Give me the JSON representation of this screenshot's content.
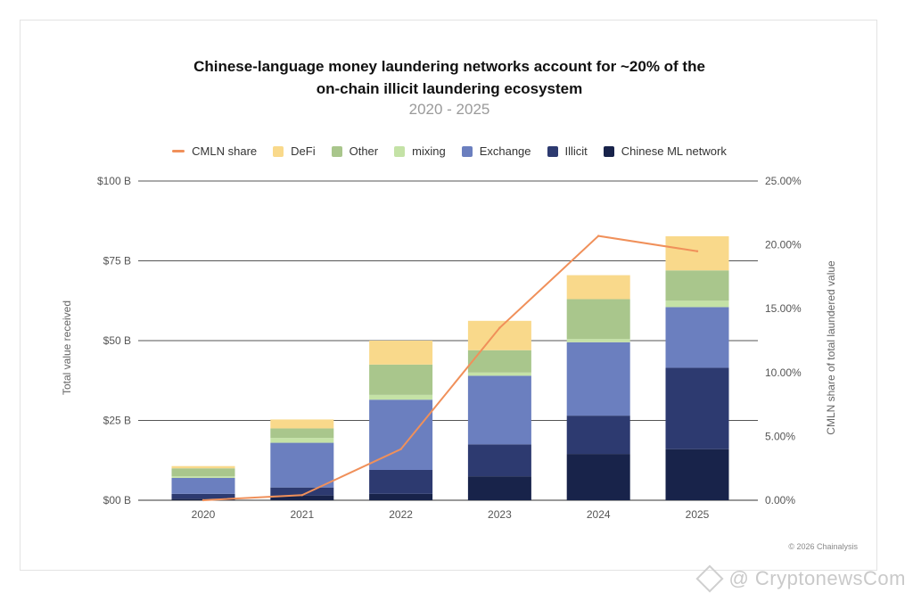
{
  "title_line1": "Chinese-language money laundering networks account for ~20% of the",
  "title_line2": "on-chain illicit laundering ecosystem",
  "subtitle": "2020 - 2025",
  "copyright": "© 2026 Chainalysis",
  "watermark": "@ CryptonewsCom",
  "legend": [
    {
      "label": "CMLN share",
      "color": "#f0905a",
      "kind": "line"
    },
    {
      "label": "DeFi",
      "color": "#f9d98b",
      "kind": "box"
    },
    {
      "label": "Other",
      "color": "#a9c68c",
      "kind": "box"
    },
    {
      "label": "mixing",
      "color": "#c4e2a6",
      "kind": "box"
    },
    {
      "label": "Exchange",
      "color": "#6b7fbf",
      "kind": "box"
    },
    {
      "label": "Illicit",
      "color": "#2d3a70",
      "kind": "box"
    },
    {
      "label": "Chinese ML network",
      "color": "#18234a",
      "kind": "box"
    }
  ],
  "chart_data": {
    "type": "bar",
    "stacked": true,
    "categories": [
      "2020",
      "2021",
      "2022",
      "2023",
      "2024",
      "2025"
    ],
    "ylabel": "Total value received",
    "y2label": "CMLN share of total laundered value",
    "ylim": [
      0,
      100
    ],
    "y2lim": [
      0,
      25
    ],
    "yticks": [
      "$00 B",
      "$25 B",
      "$50 B",
      "$75 B",
      "$100 B"
    ],
    "y2ticks": [
      "0.00%",
      "5.00%",
      "10.00%",
      "15.00%",
      "20.00%",
      "25.00%"
    ],
    "grid": true,
    "legend_position": "top",
    "series": [
      {
        "name": "Chinese ML network",
        "color": "#18234a",
        "values": [
          0.5,
          1.5,
          2,
          7.5,
          14.5,
          16
        ]
      },
      {
        "name": "Illicit",
        "color": "#2d3a70",
        "values": [
          1.5,
          2.5,
          7.5,
          10,
          12,
          25.5
        ]
      },
      {
        "name": "Exchange",
        "color": "#6b7fbf",
        "values": [
          5,
          14,
          22,
          21.5,
          23,
          19
        ]
      },
      {
        "name": "mixing",
        "color": "#c4e2a6",
        "values": [
          0.5,
          1.5,
          1.5,
          1,
          1,
          2
        ]
      },
      {
        "name": "Other",
        "color": "#a9c68c",
        "values": [
          2.5,
          3,
          9.5,
          7,
          12.5,
          9.5
        ]
      },
      {
        "name": "DeFi",
        "color": "#f9d98b",
        "values": [
          0.7,
          2.8,
          7.5,
          9.2,
          7.5,
          10.7
        ]
      }
    ],
    "line_series": {
      "name": "CMLN share",
      "color": "#f0905a",
      "axis": "right",
      "values": [
        0.0,
        0.4,
        4.0,
        13.5,
        20.7,
        19.5
      ]
    }
  }
}
